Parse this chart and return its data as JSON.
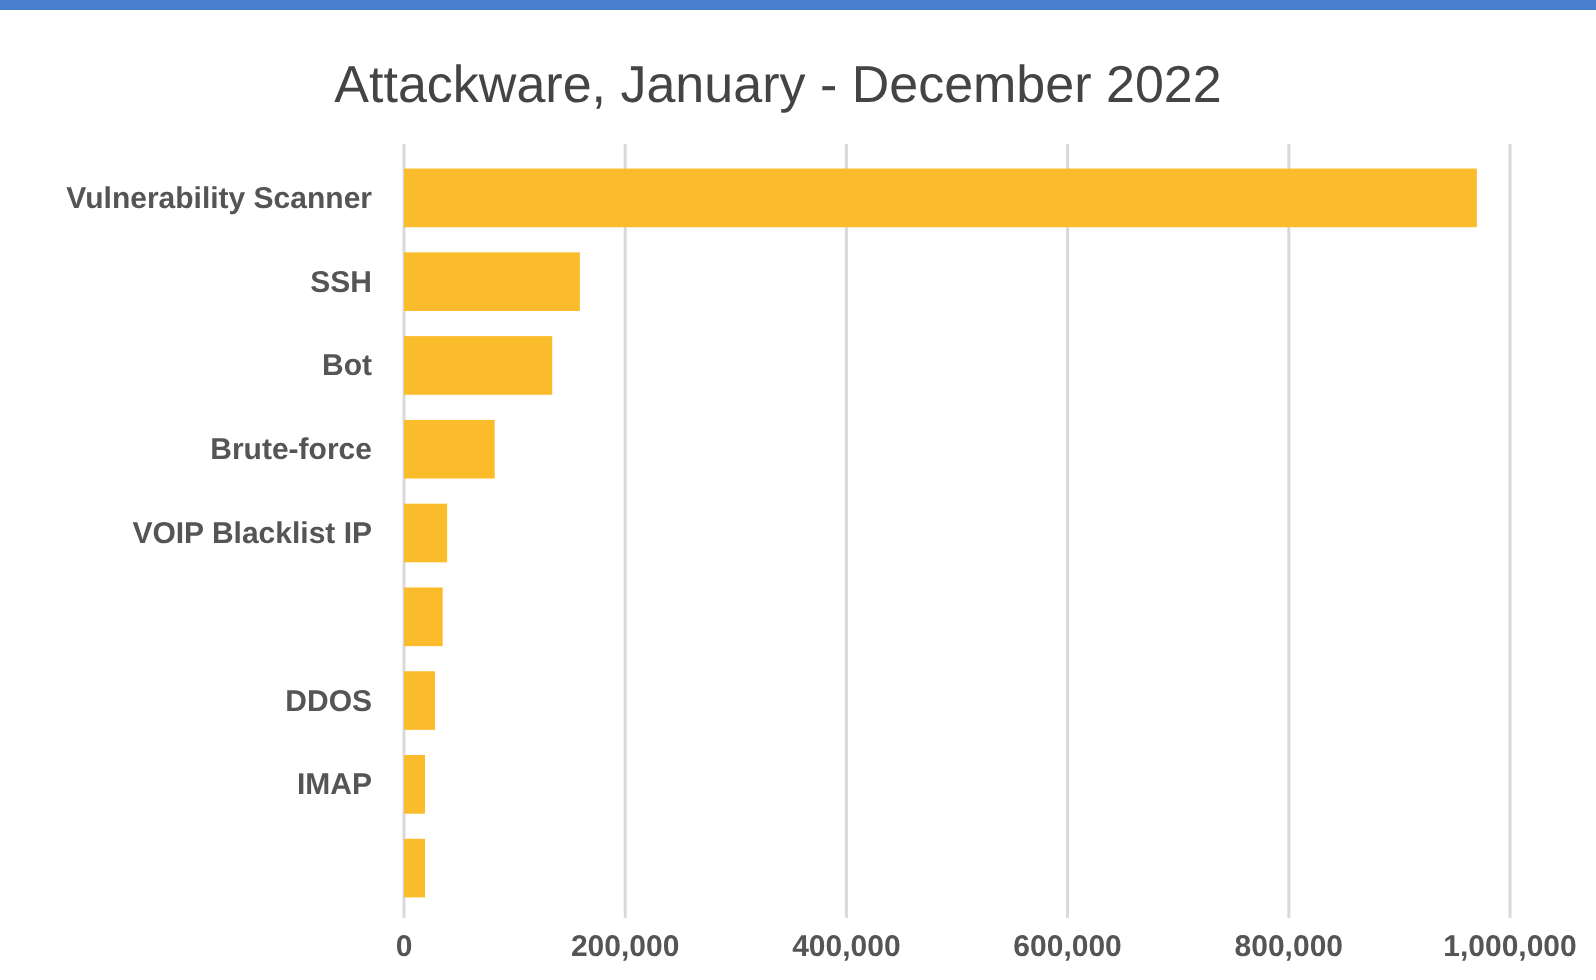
{
  "chart_data": {
    "type": "bar",
    "orientation": "horizontal",
    "title": "Attackware, January - December 2022",
    "categories": [
      "Vulnerability Scanner",
      "SSH",
      "Bot",
      "Brute-force",
      "VOIP Blacklist IP",
      null,
      "DDOS",
      "IMAP",
      null
    ],
    "values": [
      970000,
      159000,
      134000,
      82000,
      39000,
      35000,
      28000,
      19000,
      19000
    ],
    "color": "#fbbc2c",
    "xlim": [
      0,
      1000000
    ],
    "xticks": [
      0,
      {
        "value": 200000,
        "label": "200,000"
      },
      {
        "value": 400000,
        "label": "400,000"
      },
      {
        "value": 600000,
        "label": "600,000"
      },
      {
        "value": 800000,
        "label": "800,000"
      },
      {
        "value": 1000000,
        "label": "1,000,000"
      }
    ],
    "grid": "x"
  }
}
